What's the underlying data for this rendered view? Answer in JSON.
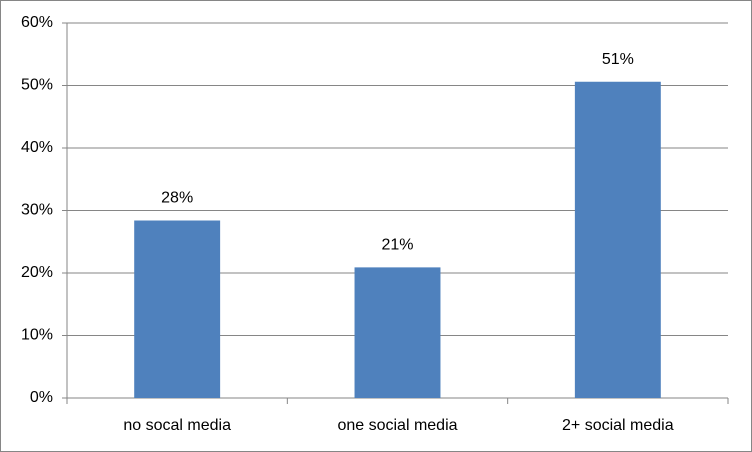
{
  "chart_data": {
    "type": "bar",
    "categories": [
      "no socal media",
      "one social media",
      "2+ social media"
    ],
    "values": [
      28.4,
      20.9,
      50.6
    ],
    "value_labels": [
      "28%",
      "21%",
      "51%"
    ],
    "color": "#4f81bd",
    "ylim": [
      0,
      60
    ],
    "yticks": [
      {
        "value": 0,
        "label": "0%"
      },
      {
        "value": 10,
        "label": "10%"
      },
      {
        "value": 20,
        "label": "20%"
      },
      {
        "value": 30,
        "label": "30%"
      },
      {
        "value": 40,
        "label": "40%"
      },
      {
        "value": 50,
        "label": "50%"
      },
      {
        "value": 60,
        "label": "60%"
      }
    ],
    "grid": true
  }
}
